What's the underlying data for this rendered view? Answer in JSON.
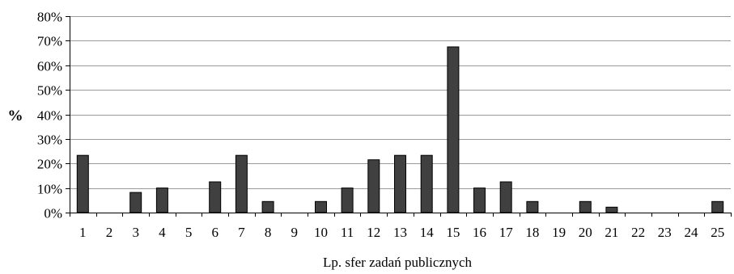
{
  "chart_data": {
    "type": "bar",
    "title": "",
    "ylabel": "%",
    "xlabel": "Lp. sfer zadań publicznych",
    "ylim": [
      0,
      80
    ],
    "yticks": [
      0,
      10,
      20,
      30,
      40,
      50,
      60,
      70,
      80
    ],
    "ytick_labels": [
      "0%",
      "10%",
      "20%",
      "30%",
      "40%",
      "50%",
      "60%",
      "70%",
      "80%"
    ],
    "grid": true,
    "legend": "none",
    "categories": [
      "1",
      "2",
      "3",
      "4",
      "5",
      "6",
      "7",
      "8",
      "9",
      "10",
      "11",
      "12",
      "13",
      "14",
      "15",
      "16",
      "17",
      "18",
      "19",
      "20",
      "21",
      "22",
      "23",
      "24",
      "25"
    ],
    "values": [
      23.3,
      0,
      8.2,
      10.0,
      0,
      12.5,
      23.3,
      4.5,
      0,
      4.5,
      10.0,
      21.5,
      23.3,
      23.3,
      67.5,
      10.0,
      12.5,
      4.5,
      0,
      4.5,
      2.2,
      0,
      0,
      0,
      4.5
    ],
    "bar_color": "#404040",
    "bar_edge_color": "#000000",
    "grid_color": "#9a9a9a"
  }
}
